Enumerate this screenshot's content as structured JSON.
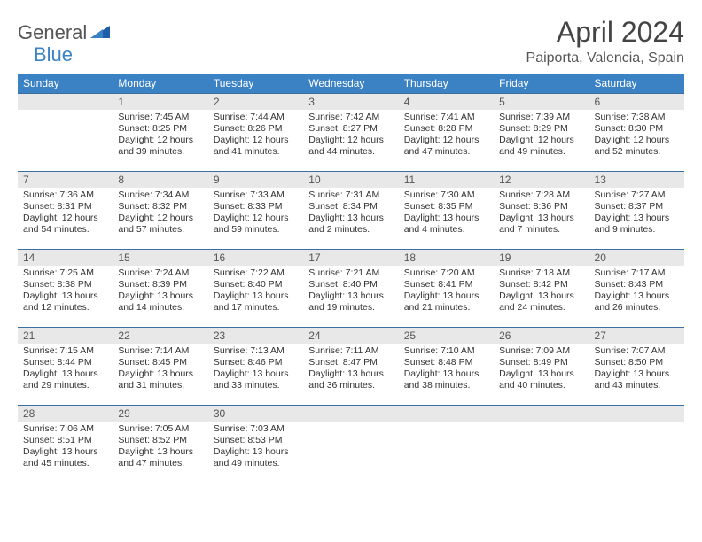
{
  "logo": {
    "word1": "General",
    "word2": "Blue"
  },
  "title": "April 2024",
  "location": "Paiporta, Valencia, Spain",
  "colors": {
    "header_bg": "#3b82c4",
    "header_text": "#ffffff",
    "daynum_bg": "#e8e8e8",
    "row_border": "#3b6fa0",
    "body_text": "#333333",
    "title_text": "#444444",
    "location_text": "#555555",
    "logo_gray": "#555555",
    "logo_blue": "#3b82c4",
    "page_bg": "#ffffff"
  },
  "typography": {
    "title_fontsize": 32,
    "location_fontsize": 16,
    "dayhead_fontsize": 12,
    "daynum_fontsize": 12,
    "body_fontsize": 10.5
  },
  "day_names": [
    "Sunday",
    "Monday",
    "Tuesday",
    "Wednesday",
    "Thursday",
    "Friday",
    "Saturday"
  ],
  "weeks": [
    [
      {
        "num": "",
        "sunrise": "",
        "sunset": "",
        "daylight": ""
      },
      {
        "num": "1",
        "sunrise": "Sunrise: 7:45 AM",
        "sunset": "Sunset: 8:25 PM",
        "daylight": "Daylight: 12 hours and 39 minutes."
      },
      {
        "num": "2",
        "sunrise": "Sunrise: 7:44 AM",
        "sunset": "Sunset: 8:26 PM",
        "daylight": "Daylight: 12 hours and 41 minutes."
      },
      {
        "num": "3",
        "sunrise": "Sunrise: 7:42 AM",
        "sunset": "Sunset: 8:27 PM",
        "daylight": "Daylight: 12 hours and 44 minutes."
      },
      {
        "num": "4",
        "sunrise": "Sunrise: 7:41 AM",
        "sunset": "Sunset: 8:28 PM",
        "daylight": "Daylight: 12 hours and 47 minutes."
      },
      {
        "num": "5",
        "sunrise": "Sunrise: 7:39 AM",
        "sunset": "Sunset: 8:29 PM",
        "daylight": "Daylight: 12 hours and 49 minutes."
      },
      {
        "num": "6",
        "sunrise": "Sunrise: 7:38 AM",
        "sunset": "Sunset: 8:30 PM",
        "daylight": "Daylight: 12 hours and 52 minutes."
      }
    ],
    [
      {
        "num": "7",
        "sunrise": "Sunrise: 7:36 AM",
        "sunset": "Sunset: 8:31 PM",
        "daylight": "Daylight: 12 hours and 54 minutes."
      },
      {
        "num": "8",
        "sunrise": "Sunrise: 7:34 AM",
        "sunset": "Sunset: 8:32 PM",
        "daylight": "Daylight: 12 hours and 57 minutes."
      },
      {
        "num": "9",
        "sunrise": "Sunrise: 7:33 AM",
        "sunset": "Sunset: 8:33 PM",
        "daylight": "Daylight: 12 hours and 59 minutes."
      },
      {
        "num": "10",
        "sunrise": "Sunrise: 7:31 AM",
        "sunset": "Sunset: 8:34 PM",
        "daylight": "Daylight: 13 hours and 2 minutes."
      },
      {
        "num": "11",
        "sunrise": "Sunrise: 7:30 AM",
        "sunset": "Sunset: 8:35 PM",
        "daylight": "Daylight: 13 hours and 4 minutes."
      },
      {
        "num": "12",
        "sunrise": "Sunrise: 7:28 AM",
        "sunset": "Sunset: 8:36 PM",
        "daylight": "Daylight: 13 hours and 7 minutes."
      },
      {
        "num": "13",
        "sunrise": "Sunrise: 7:27 AM",
        "sunset": "Sunset: 8:37 PM",
        "daylight": "Daylight: 13 hours and 9 minutes."
      }
    ],
    [
      {
        "num": "14",
        "sunrise": "Sunrise: 7:25 AM",
        "sunset": "Sunset: 8:38 PM",
        "daylight": "Daylight: 13 hours and 12 minutes."
      },
      {
        "num": "15",
        "sunrise": "Sunrise: 7:24 AM",
        "sunset": "Sunset: 8:39 PM",
        "daylight": "Daylight: 13 hours and 14 minutes."
      },
      {
        "num": "16",
        "sunrise": "Sunrise: 7:22 AM",
        "sunset": "Sunset: 8:40 PM",
        "daylight": "Daylight: 13 hours and 17 minutes."
      },
      {
        "num": "17",
        "sunrise": "Sunrise: 7:21 AM",
        "sunset": "Sunset: 8:40 PM",
        "daylight": "Daylight: 13 hours and 19 minutes."
      },
      {
        "num": "18",
        "sunrise": "Sunrise: 7:20 AM",
        "sunset": "Sunset: 8:41 PM",
        "daylight": "Daylight: 13 hours and 21 minutes."
      },
      {
        "num": "19",
        "sunrise": "Sunrise: 7:18 AM",
        "sunset": "Sunset: 8:42 PM",
        "daylight": "Daylight: 13 hours and 24 minutes."
      },
      {
        "num": "20",
        "sunrise": "Sunrise: 7:17 AM",
        "sunset": "Sunset: 8:43 PM",
        "daylight": "Daylight: 13 hours and 26 minutes."
      }
    ],
    [
      {
        "num": "21",
        "sunrise": "Sunrise: 7:15 AM",
        "sunset": "Sunset: 8:44 PM",
        "daylight": "Daylight: 13 hours and 29 minutes."
      },
      {
        "num": "22",
        "sunrise": "Sunrise: 7:14 AM",
        "sunset": "Sunset: 8:45 PM",
        "daylight": "Daylight: 13 hours and 31 minutes."
      },
      {
        "num": "23",
        "sunrise": "Sunrise: 7:13 AM",
        "sunset": "Sunset: 8:46 PM",
        "daylight": "Daylight: 13 hours and 33 minutes."
      },
      {
        "num": "24",
        "sunrise": "Sunrise: 7:11 AM",
        "sunset": "Sunset: 8:47 PM",
        "daylight": "Daylight: 13 hours and 36 minutes."
      },
      {
        "num": "25",
        "sunrise": "Sunrise: 7:10 AM",
        "sunset": "Sunset: 8:48 PM",
        "daylight": "Daylight: 13 hours and 38 minutes."
      },
      {
        "num": "26",
        "sunrise": "Sunrise: 7:09 AM",
        "sunset": "Sunset: 8:49 PM",
        "daylight": "Daylight: 13 hours and 40 minutes."
      },
      {
        "num": "27",
        "sunrise": "Sunrise: 7:07 AM",
        "sunset": "Sunset: 8:50 PM",
        "daylight": "Daylight: 13 hours and 43 minutes."
      }
    ],
    [
      {
        "num": "28",
        "sunrise": "Sunrise: 7:06 AM",
        "sunset": "Sunset: 8:51 PM",
        "daylight": "Daylight: 13 hours and 45 minutes."
      },
      {
        "num": "29",
        "sunrise": "Sunrise: 7:05 AM",
        "sunset": "Sunset: 8:52 PM",
        "daylight": "Daylight: 13 hours and 47 minutes."
      },
      {
        "num": "30",
        "sunrise": "Sunrise: 7:03 AM",
        "sunset": "Sunset: 8:53 PM",
        "daylight": "Daylight: 13 hours and 49 minutes."
      },
      {
        "num": "",
        "sunrise": "",
        "sunset": "",
        "daylight": ""
      },
      {
        "num": "",
        "sunrise": "",
        "sunset": "",
        "daylight": ""
      },
      {
        "num": "",
        "sunrise": "",
        "sunset": "",
        "daylight": ""
      },
      {
        "num": "",
        "sunrise": "",
        "sunset": "",
        "daylight": ""
      }
    ]
  ]
}
